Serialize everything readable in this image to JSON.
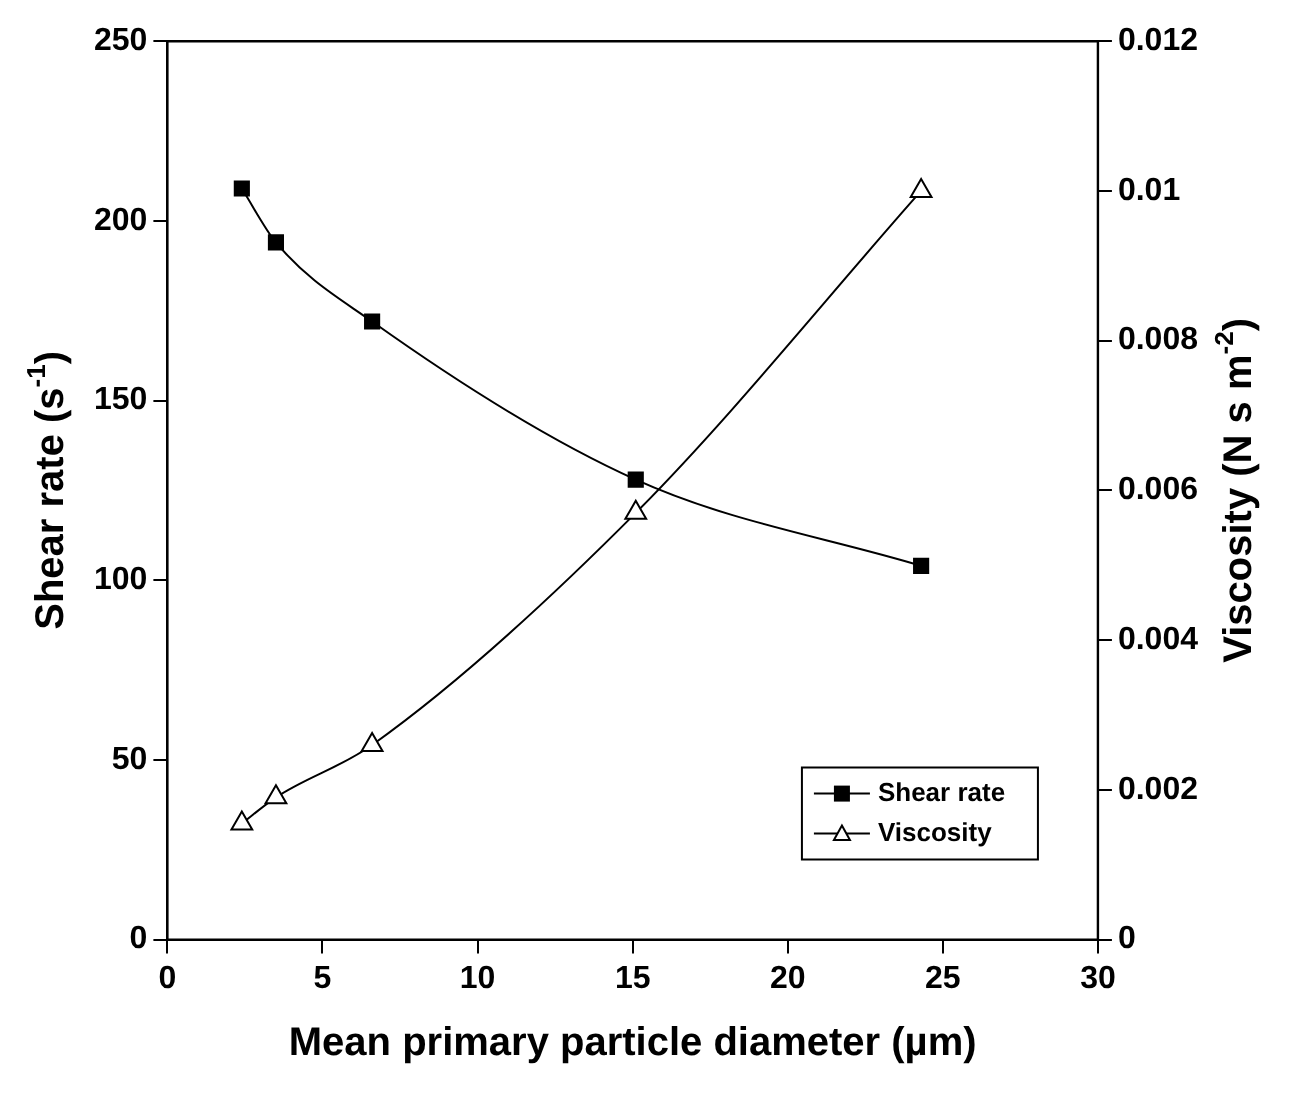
{
  "chart_data": {
    "type": "line",
    "xlabel": "Mean primary particle diameter (µm)",
    "ylabel": "Shear rate (s$^{-1}$)",
    "y2label": "Viscosity (N s m$^{-2}$)",
    "xlim": [
      0,
      30
    ],
    "xticks": [
      0,
      5,
      10,
      15,
      20,
      25,
      30
    ],
    "ylim": [
      0,
      250
    ],
    "yticks": [
      0,
      50,
      100,
      150,
      200,
      250
    ],
    "y2lim": [
      0,
      0.012
    ],
    "y2ticks": [
      0,
      0.002,
      0.004,
      0.006,
      0.008,
      0.01,
      0.012
    ],
    "grid": false,
    "legend": "bottom right",
    "series": [
      {
        "name": "Shear rate",
        "color": "#000000",
        "marker": "square",
        "x": [
          2.4,
          3.5,
          6.6,
          15.1,
          24.3
        ],
        "values": [
          209,
          194,
          172,
          128,
          104
        ]
      },
      {
        "name": "Viscosity",
        "color": "#000000",
        "marker": "triangle",
        "axis": "y2",
        "x": [
          2.4,
          3.5,
          6.6,
          15.1,
          24.3
        ],
        "values": [
          0.00155,
          0.0019,
          0.0026,
          0.0057,
          0.01
        ]
      }
    ]
  }
}
